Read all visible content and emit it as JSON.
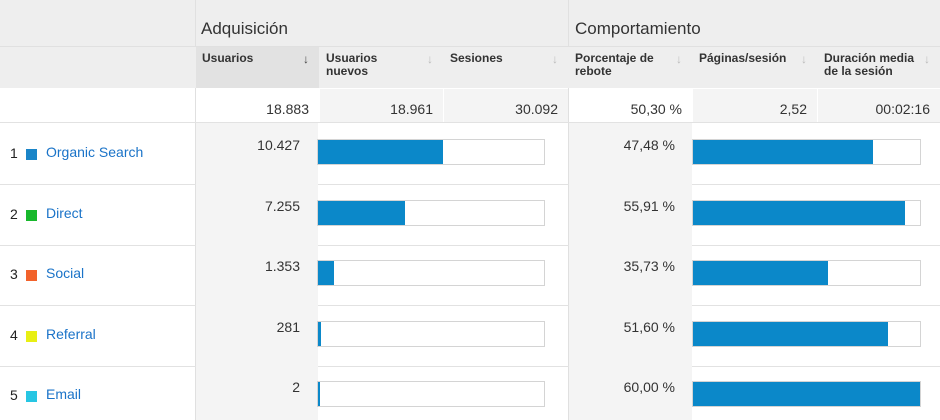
{
  "groups": {
    "acquisition": "Adquisición",
    "behavior": "Comportamiento"
  },
  "columns": {
    "users": "Usuarios",
    "new_users_1": "Usuarios",
    "new_users_2": "nuevos",
    "sessions": "Sesiones",
    "bounce_1": "Porcentaje de",
    "bounce_2": "rebote",
    "pages": "Páginas/sesión",
    "duration_1": "Duración media",
    "duration_2": "de la sesión"
  },
  "sort_icons": {
    "active": "↓",
    "inactive": "↓"
  },
  "totals": {
    "users": "18.883",
    "new_users": "18.961",
    "sessions": "30.092",
    "bounce": "50,30 %",
    "pages": "2,52",
    "duration": "00:02:16"
  },
  "rows": [
    {
      "rank": "1",
      "channel": "Organic Search",
      "color": "#1a85c8",
      "users": "10.427",
      "users_share": 0.552,
      "bounce": "47,48 %",
      "bounce_share": 0.791
    },
    {
      "rank": "2",
      "channel": "Direct",
      "color": "#18b82c",
      "users": "7.255",
      "users_share": 0.384,
      "bounce": "55,91 %",
      "bounce_share": 0.932
    },
    {
      "rank": "3",
      "channel": "Social",
      "color": "#f2622b",
      "users": "1.353",
      "users_share": 0.072,
      "bounce": "35,73 %",
      "bounce_share": 0.596
    },
    {
      "rank": "4",
      "channel": "Referral",
      "color": "#e8ef14",
      "users": "281",
      "users_share": 0.015,
      "bounce": "51,60 %",
      "bounce_share": 0.86
    },
    {
      "rank": "5",
      "channel": "Email",
      "color": "#27c6e3",
      "users": "2",
      "users_share": 0.0001,
      "bounce": "60,00 %",
      "bounce_share": 1.0
    }
  ]
}
